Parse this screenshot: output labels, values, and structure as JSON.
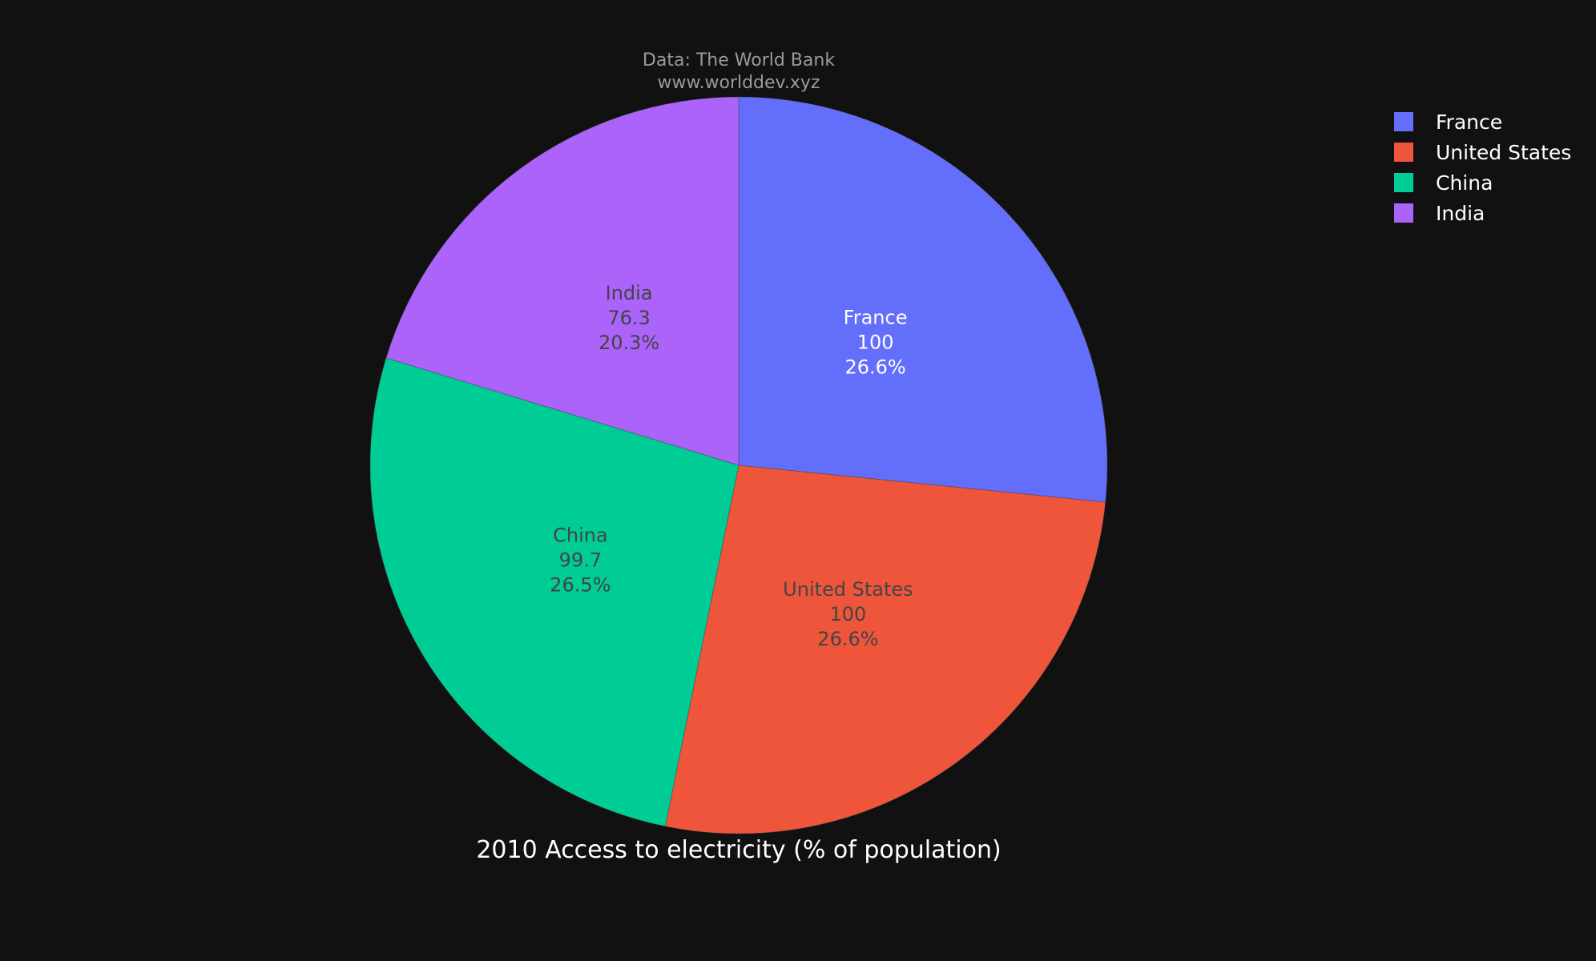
{
  "chart_data": {
    "type": "pie",
    "title": "2010 Access to electricity (% of population)",
    "annotation": [
      "Data: The World Bank",
      "www.worlddev.xyz"
    ],
    "categories": [
      "France",
      "United States",
      "China",
      "India"
    ],
    "values": [
      100,
      100,
      99.7,
      76.3
    ],
    "value_labels": [
      "100",
      "100",
      "99.7",
      "76.3"
    ],
    "percent_labels": [
      "26.6%",
      "26.6%",
      "26.5%",
      "20.3%"
    ],
    "colors": [
      "#636efa",
      "#ef553b",
      "#00cc96",
      "#ab63fa"
    ],
    "label_text_colors": [
      "#ffffff",
      "#444444",
      "#444444",
      "#444444"
    ],
    "direction": "clockwise",
    "start_angle": "top",
    "legend": {
      "placement": "top-right",
      "items": [
        "France",
        "United States",
        "China",
        "India"
      ]
    },
    "background": "#111111"
  }
}
